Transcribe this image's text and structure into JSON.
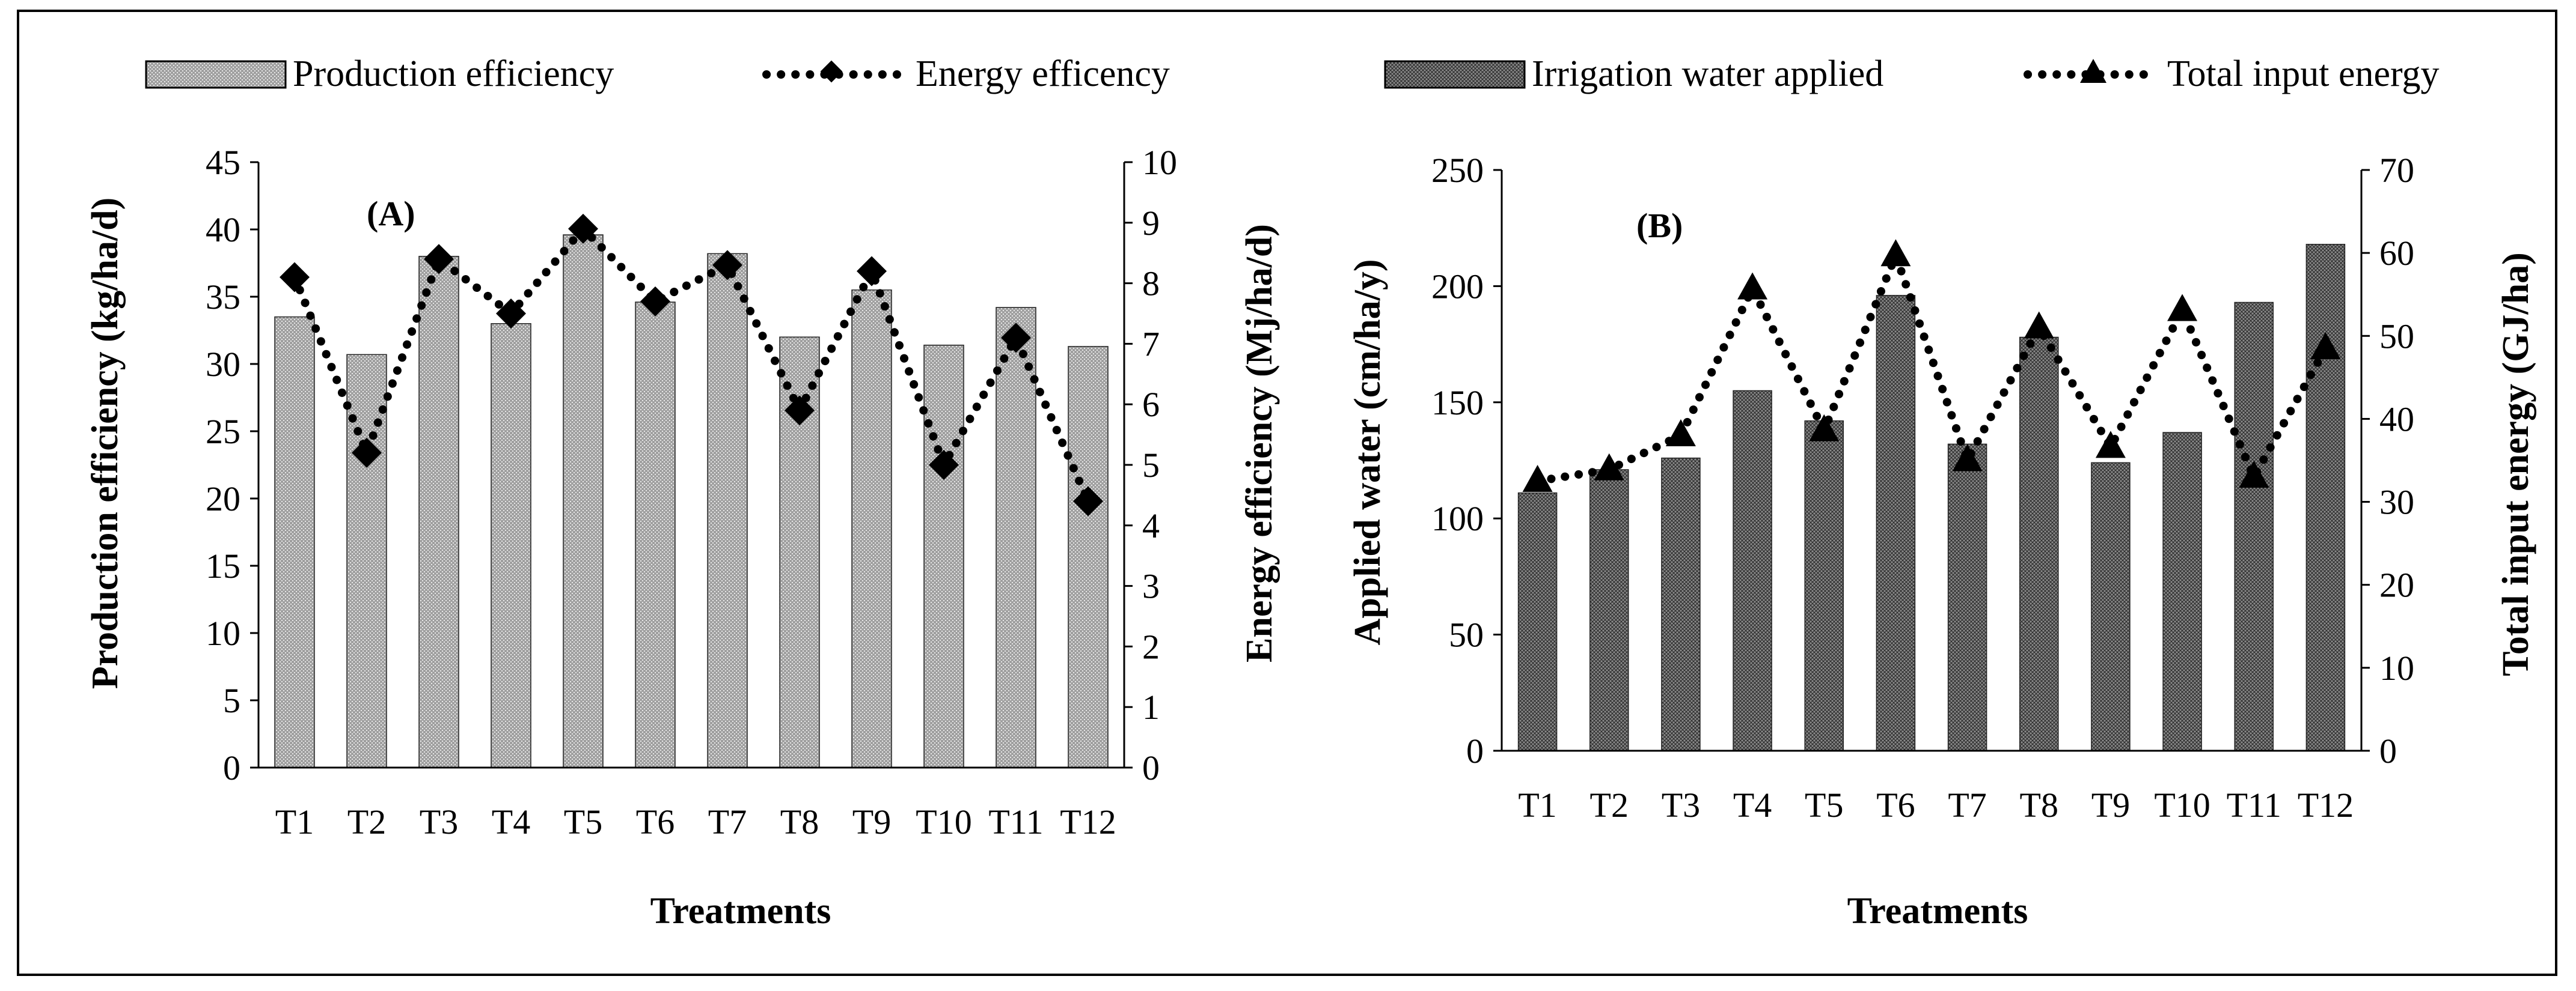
{
  "chart_data": [
    {
      "type": "bar",
      "panel_label": "(A)",
      "categories": [
        "T1",
        "T2",
        "T3",
        "T4",
        "T5",
        "T6",
        "T7",
        "T8",
        "T9",
        "T10",
        "T11",
        "T12"
      ],
      "series": [
        {
          "name": "Production efficiency",
          "kind": "bar",
          "axis": "left",
          "values": [
            33.5,
            30.7,
            38.0,
            33.0,
            39.6,
            34.6,
            38.2,
            32.0,
            35.5,
            31.4,
            34.2,
            31.3
          ]
        },
        {
          "name": "Energy efficency",
          "kind": "line",
          "marker": "diamond",
          "axis": "right",
          "values": [
            8.1,
            5.2,
            8.4,
            7.5,
            8.9,
            7.7,
            8.3,
            5.9,
            8.2,
            5.0,
            7.1,
            4.4
          ]
        }
      ],
      "xlabel": "Treatments",
      "ylabel": "Production efficiency (kg/ha/d)",
      "ylabel_right": "Energy efficiency (Mj/ha/d)",
      "ylim": [
        0,
        45
      ],
      "ylim_right": [
        0,
        10
      ],
      "yticks": [
        "0",
        "5",
        "10",
        "15",
        "20",
        "25",
        "30",
        "35",
        "40",
        "45"
      ],
      "yticks_right": [
        "0",
        "1",
        "2",
        "3",
        "4",
        "5",
        "6",
        "7",
        "8",
        "9",
        "10"
      ],
      "legend": "top"
    },
    {
      "type": "bar",
      "panel_label": "(B)",
      "categories": [
        "T1",
        "T2",
        "T3",
        "T4",
        "T5",
        "T6",
        "T7",
        "T8",
        "T9",
        "T10",
        "T11",
        "T12"
      ],
      "series": [
        {
          "name": "Irrigation water applied",
          "kind": "bar",
          "axis": "left",
          "values": [
            111,
            121,
            126,
            155,
            142,
            196,
            132,
            178,
            124,
            137,
            193,
            218
          ]
        },
        {
          "name": "Total input energy",
          "kind": "line",
          "marker": "triangle",
          "axis": "right",
          "values": [
            32.5,
            33.9,
            38.0,
            55.7,
            38.6,
            59.7,
            35.0,
            51.0,
            36.6,
            53.1,
            33.0,
            48.5
          ]
        }
      ],
      "xlabel": "Treatments",
      "ylabel": "Applied water (cm/ha/y)",
      "ylabel_right": "Total input energy (GJ/ha)",
      "ylim": [
        0,
        250
      ],
      "ylim_right": [
        0,
        70
      ],
      "yticks": [
        "0",
        "50",
        "100",
        "150",
        "200",
        "250"
      ],
      "yticks_right": [
        "0",
        "10",
        "20",
        "30",
        "40",
        "50",
        "60",
        "70"
      ],
      "legend": "top"
    }
  ]
}
